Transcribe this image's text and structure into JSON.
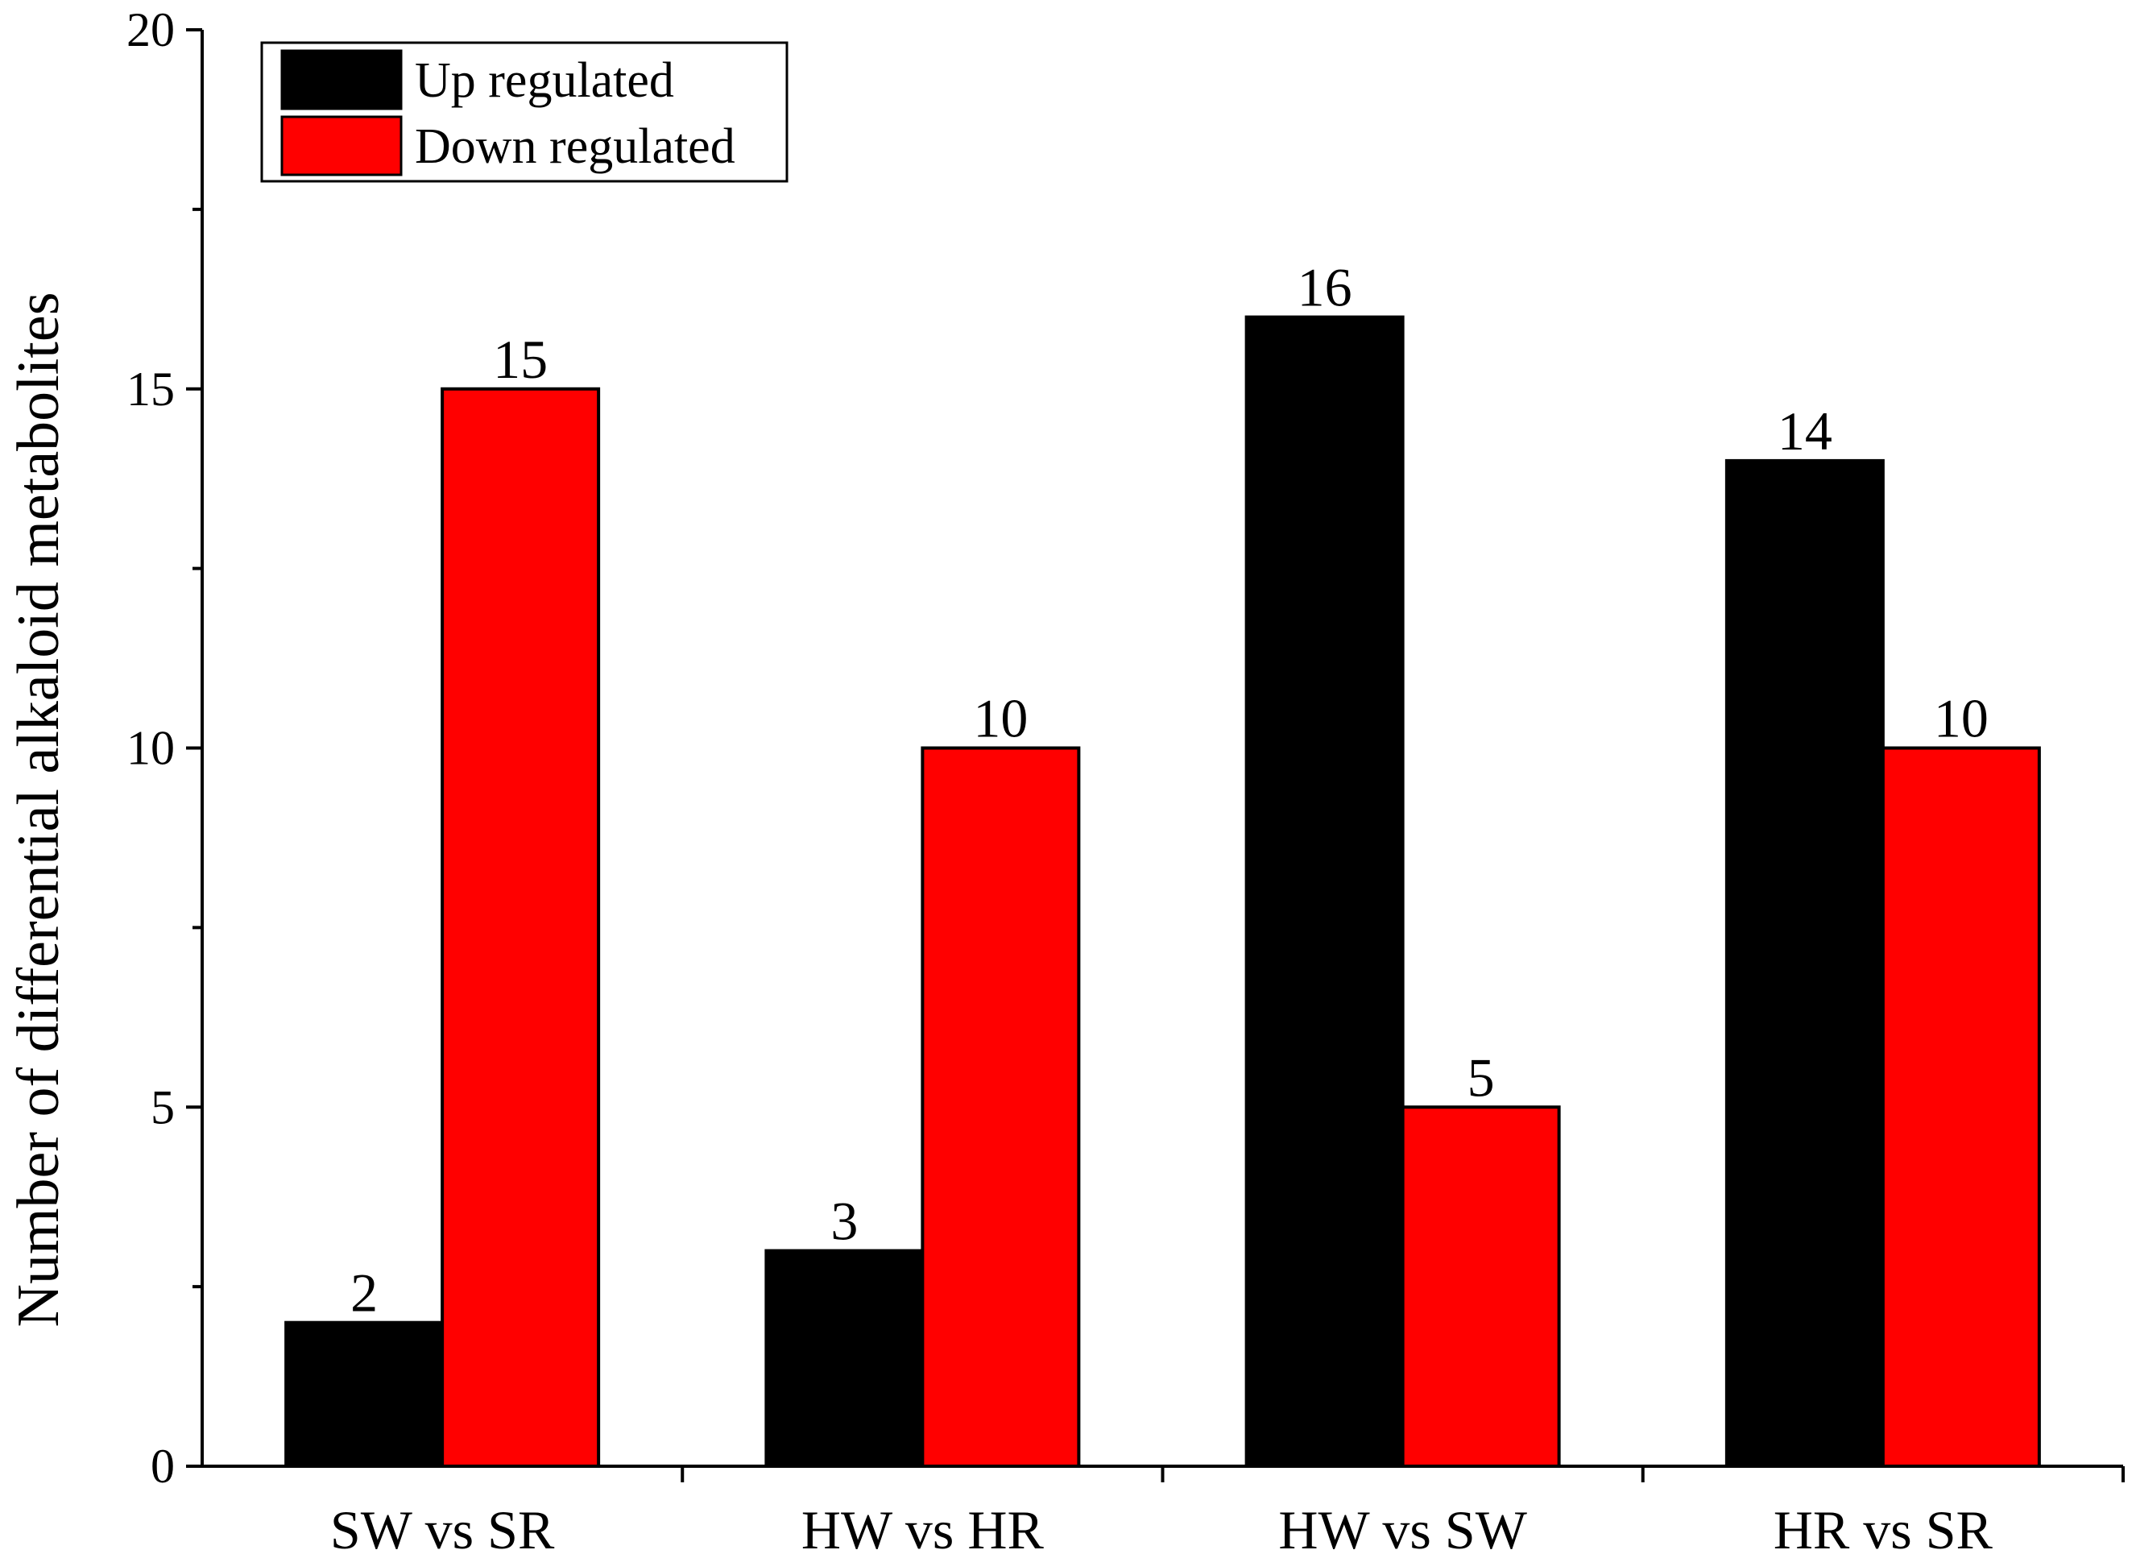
{
  "chart_data": {
    "type": "bar",
    "title": "",
    "xlabel": "",
    "ylabel": "Number of differential alkaloid metabolites",
    "categories": [
      "SW vs SR",
      "HW vs HR",
      "HW vs SW",
      "HR vs SR"
    ],
    "series": [
      {
        "name": "Up regulated",
        "color": "#000000",
        "values": [
          2,
          3,
          16,
          14
        ]
      },
      {
        "name": "Down regulated",
        "color": "#ff0000",
        "values": [
          15,
          10,
          5,
          10
        ]
      }
    ],
    "ylim": [
      0,
      20
    ],
    "yticks": [
      0,
      5,
      10,
      15,
      20
    ],
    "grid": false,
    "legend_position": "top-left",
    "data_labels": true
  }
}
